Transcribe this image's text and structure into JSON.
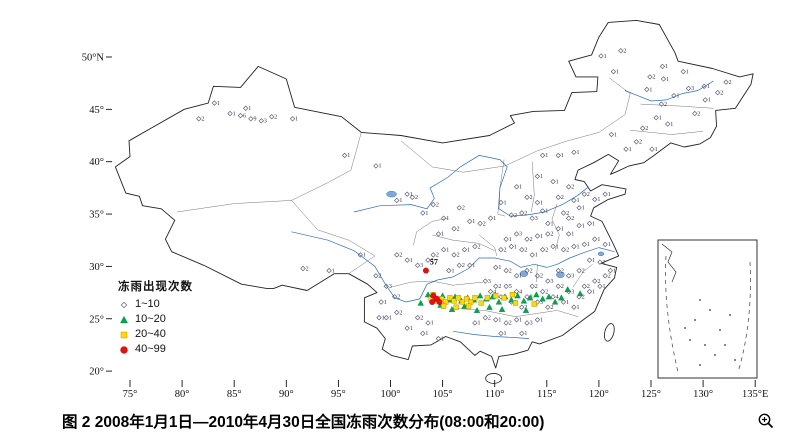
{
  "figure": {
    "caption": "图 2 2008年1月1日—2010年4月30日全国冻雨次数分布(08:00和20:00)"
  },
  "axes": {
    "lat_ticks": [
      "50°N",
      "45°",
      "40°",
      "35°",
      "30°",
      "25°",
      "20°"
    ],
    "lat_values": [
      50,
      45,
      40,
      35,
      30,
      25,
      20
    ],
    "lon_ticks": [
      "75°",
      "80°",
      "85°",
      "90°",
      "95°",
      "100°",
      "105°",
      "110°",
      "115°",
      "120°",
      "125°",
      "130°",
      "135°E"
    ],
    "lon_values": [
      75,
      80,
      85,
      90,
      95,
      100,
      105,
      110,
      115,
      120,
      125,
      130,
      135
    ]
  },
  "legend": {
    "title": "冻雨出现次数",
    "items": [
      {
        "label": "1~10",
        "marker": "diamond",
        "color": "#606080"
      },
      {
        "label": "10~20",
        "marker": "triangle",
        "color": "#00a650"
      },
      {
        "label": "20~40",
        "marker": "square",
        "color": "#ffd900"
      },
      {
        "label": "40~99",
        "marker": "circle",
        "color": "#e8100c"
      }
    ]
  },
  "chart_data": {
    "type": "scatter",
    "title": "图 2 2008年1月1日—2010年4月30日全国冻雨次数分布(08:00和20:00)",
    "xlabel": "",
    "ylabel": "",
    "x_range": [
      75,
      135
    ],
    "y_range": [
      20,
      50
    ],
    "points_format": "[lon_E, lat_N, count?]",
    "series": [
      {
        "name": "1~10",
        "marker": "diamond",
        "color": "#606080",
        "points": [
          [
            126.0,
            45.5,
            2
          ],
          [
            127.2,
            46.3,
            1
          ],
          [
            128.6,
            47.0,
            3
          ],
          [
            125.5,
            44.2,
            1
          ],
          [
            124.2,
            43.2,
            2
          ],
          [
            126.6,
            43.6,
            1
          ],
          [
            129.2,
            44.6,
            2
          ],
          [
            122.6,
            41.2,
            1
          ],
          [
            123.6,
            41.9,
            2
          ],
          [
            125.1,
            41.2,
            1
          ],
          [
            130.2,
            45.9,
            1
          ],
          [
            131.4,
            46.6,
            2
          ],
          [
            124.6,
            46.9,
            1
          ],
          [
            121.2,
            42.6,
            1
          ],
          [
            120.2,
            50.1,
            1
          ],
          [
            122.1,
            50.6,
            2
          ],
          [
            121.4,
            48.6,
            1
          ],
          [
            126.1,
            49.1,
            1
          ],
          [
            124.9,
            48.1,
            2
          ],
          [
            128.1,
            48.6,
            1
          ],
          [
            130.1,
            47.2,
            1
          ],
          [
            132.2,
            47.6,
            2
          ],
          [
            126.2,
            47.9,
            1
          ],
          [
            112.1,
            37.6,
            1
          ],
          [
            113.1,
            36.6,
            2
          ],
          [
            114.1,
            36.1,
            1
          ],
          [
            112.6,
            35.1,
            2
          ],
          [
            110.6,
            36.1,
            1
          ],
          [
            111.6,
            34.9,
            2
          ],
          [
            113.6,
            34.6,
            3
          ],
          [
            114.6,
            35.3,
            1
          ],
          [
            116.1,
            36.6,
            2
          ],
          [
            117.6,
            36.3,
            1
          ],
          [
            118.6,
            36.9,
            2
          ],
          [
            119.6,
            36.4,
            1
          ],
          [
            120.6,
            36.9,
            1
          ],
          [
            116.6,
            35.1,
            2
          ],
          [
            115.1,
            34.1,
            1
          ],
          [
            117.1,
            34.6,
            2
          ],
          [
            118.1,
            35.6,
            1
          ],
          [
            114.1,
            38.6,
            1
          ],
          [
            115.6,
            38.1,
            1
          ],
          [
            117.1,
            37.6,
            2
          ],
          [
            116.1,
            40.6,
            1
          ],
          [
            117.6,
            40.9,
            1
          ],
          [
            114.6,
            40.6,
            1
          ],
          [
            106.6,
            35.6,
            2
          ],
          [
            105.1,
            34.6,
            1
          ],
          [
            104.1,
            35.9,
            2
          ],
          [
            107.6,
            34.3,
            1
          ],
          [
            108.6,
            34.1,
            2
          ],
          [
            109.6,
            34.6,
            1
          ],
          [
            106.1,
            33.6,
            2
          ],
          [
            104.6,
            33.1,
            1
          ],
          [
            103.1,
            35.1,
            1
          ],
          [
            102.1,
            36.6,
            2
          ],
          [
            101.6,
            36.9,
            1
          ],
          [
            100.6,
            36.3,
            1
          ],
          [
            98.6,
            39.6,
            1
          ],
          [
            95.6,
            40.6,
            1
          ],
          [
            85.6,
            44.4,
            6
          ],
          [
            86.6,
            44.1,
            9
          ],
          [
            87.6,
            43.9,
            3
          ],
          [
            84.6,
            44.6,
            1
          ],
          [
            88.6,
            44.3,
            2
          ],
          [
            86.1,
            45.1,
            1
          ],
          [
            83.1,
            45.6,
            1
          ],
          [
            81.6,
            44.1,
            2
          ],
          [
            90.6,
            44.1,
            1
          ],
          [
            91.6,
            29.8,
            2
          ],
          [
            94.1,
            29.6,
            1
          ],
          [
            97.1,
            31.1,
            1
          ],
          [
            98.6,
            29.1,
            2
          ],
          [
            99.6,
            28.1,
            3
          ],
          [
            100.4,
            27.1,
            2
          ],
          [
            99.1,
            26.6,
            1
          ],
          [
            98.9,
            25.1,
            1
          ],
          [
            110.6,
            31.6,
            2
          ],
          [
            111.6,
            31.9,
            1
          ],
          [
            112.6,
            31.6,
            2
          ],
          [
            113.6,
            31.1,
            1
          ],
          [
            114.6,
            31.6,
            2
          ],
          [
            115.6,
            31.9,
            1
          ],
          [
            116.6,
            31.6,
            2
          ],
          [
            117.6,
            31.9,
            1
          ],
          [
            118.6,
            32.1,
            1
          ],
          [
            119.6,
            32.6,
            1
          ],
          [
            120.6,
            32.1,
            1
          ],
          [
            113.1,
            32.6,
            2
          ],
          [
            114.1,
            32.9,
            1
          ],
          [
            115.1,
            33.1,
            2
          ],
          [
            116.1,
            33.6,
            1
          ],
          [
            117.1,
            33.1,
            1
          ],
          [
            118.1,
            33.9,
            1
          ],
          [
            119.1,
            34.1,
            1
          ],
          [
            112.1,
            33.1,
            3
          ],
          [
            111.1,
            32.6,
            1
          ],
          [
            109.1,
            28.6,
            3
          ],
          [
            109.6,
            27.6,
            4
          ],
          [
            110.1,
            28.1,
            2
          ],
          [
            110.6,
            27.1,
            3
          ],
          [
            111.1,
            28.1,
            5
          ],
          [
            111.6,
            26.6,
            2
          ],
          [
            112.1,
            27.6,
            4
          ],
          [
            112.6,
            26.1,
            2
          ],
          [
            113.1,
            27.1,
            3
          ],
          [
            113.6,
            28.1,
            2
          ],
          [
            114.1,
            26.6,
            3
          ],
          [
            114.6,
            27.6,
            2
          ],
          [
            115.1,
            26.1,
            2
          ],
          [
            115.6,
            27.1,
            4
          ],
          [
            116.1,
            28.1,
            2
          ],
          [
            116.6,
            26.6,
            1
          ],
          [
            117.1,
            27.6,
            3
          ],
          [
            117.6,
            26.1,
            1
          ],
          [
            118.1,
            27.1,
            2
          ],
          [
            118.6,
            28.1,
            2
          ],
          [
            119.1,
            27.6,
            1
          ],
          [
            119.6,
            28.6,
            2
          ],
          [
            120.1,
            28.1,
            1
          ],
          [
            120.6,
            29.1,
            2
          ],
          [
            118.1,
            29.6,
            2
          ],
          [
            117.1,
            29.1,
            3
          ],
          [
            116.1,
            29.6,
            2
          ],
          [
            115.1,
            28.6,
            3
          ],
          [
            114.1,
            29.1,
            2
          ],
          [
            113.1,
            29.6,
            2
          ],
          [
            112.1,
            29.1,
            1
          ],
          [
            111.1,
            29.6,
            2
          ],
          [
            110.1,
            29.9,
            1
          ],
          [
            121.1,
            29.6,
            1
          ],
          [
            119.1,
            30.6,
            1
          ],
          [
            120.1,
            30.4,
            2
          ],
          [
            108.1,
            24.6,
            1
          ],
          [
            109.1,
            25.1,
            2
          ],
          [
            110.1,
            24.9,
            1
          ],
          [
            111.1,
            24.6,
            2
          ],
          [
            112.1,
            24.9,
            1
          ],
          [
            113.1,
            24.6,
            3
          ],
          [
            114.1,
            24.9,
            1
          ],
          [
            110.6,
            23.6,
            1
          ],
          [
            112.6,
            23.6,
            1
          ],
          [
            102.6,
            25.1,
            2
          ],
          [
            103.6,
            24.6,
            1
          ],
          [
            101.6,
            24.1,
            1
          ],
          [
            100.6,
            25.6,
            2
          ],
          [
            99.6,
            25.1,
            1
          ],
          [
            103.1,
            23.6,
            1
          ],
          [
            104.6,
            23.1,
            1
          ],
          [
            104.1,
            31.1,
            2
          ],
          [
            105.1,
            31.6,
            1
          ],
          [
            106.1,
            31.1,
            2
          ],
          [
            107.1,
            31.6,
            1
          ],
          [
            108.1,
            31.9,
            2
          ],
          [
            103.6,
            30.6,
            2
          ],
          [
            102.6,
            30.1,
            3
          ],
          [
            101.6,
            30.6,
            1
          ],
          [
            100.6,
            31.1,
            2
          ],
          [
            105.6,
            29.6,
            1
          ],
          [
            106.6,
            30.1,
            2
          ],
          [
            107.6,
            30.1,
            1
          ]
        ]
      },
      {
        "name": "10~20",
        "marker": "triangle",
        "color": "#00a650",
        "points": [
          [
            104.3,
            26.9
          ],
          [
            105.0,
            27.2
          ],
          [
            105.6,
            26.8
          ],
          [
            106.2,
            27.1
          ],
          [
            106.8,
            26.7
          ],
          [
            107.4,
            27.0
          ],
          [
            108.0,
            26.8
          ],
          [
            108.6,
            27.2
          ],
          [
            109.2,
            26.9
          ],
          [
            109.8,
            27.1
          ],
          [
            110.4,
            26.6
          ],
          [
            111.0,
            27.1
          ],
          [
            111.6,
            26.8
          ],
          [
            112.2,
            27.2
          ],
          [
            112.8,
            26.7
          ],
          [
            113.4,
            27.0
          ],
          [
            114.0,
            27.3
          ],
          [
            114.6,
            26.9
          ],
          [
            115.2,
            27.1
          ],
          [
            115.8,
            26.6
          ],
          [
            116.4,
            27.0
          ],
          [
            104.8,
            26.3
          ],
          [
            105.9,
            25.9
          ],
          [
            107.1,
            26.2
          ],
          [
            108.3,
            25.8
          ],
          [
            109.5,
            26.1
          ],
          [
            110.7,
            25.9
          ],
          [
            113.0,
            25.8
          ],
          [
            102.9,
            26.5
          ],
          [
            103.6,
            27.3
          ],
          [
            117.0,
            27.8
          ],
          [
            118.2,
            27.4
          ]
        ]
      },
      {
        "name": "20~40",
        "marker": "square",
        "color": "#ffd900",
        "points": [
          [
            104.5,
            26.7
          ],
          [
            104.9,
            26.9
          ],
          [
            105.3,
            26.6
          ],
          [
            105.7,
            27.0
          ],
          [
            106.1,
            26.7
          ],
          [
            106.5,
            27.0
          ],
          [
            106.9,
            26.6
          ],
          [
            107.3,
            26.9
          ],
          [
            107.7,
            26.6
          ],
          [
            108.1,
            27.0
          ],
          [
            108.7,
            26.5
          ],
          [
            109.3,
            27.0
          ],
          [
            110.1,
            27.2
          ],
          [
            110.9,
            27.0
          ],
          [
            112.0,
            26.5
          ],
          [
            105.1,
            26.2
          ],
          [
            106.3,
            26.1
          ],
          [
            107.5,
            26.2
          ],
          [
            103.9,
            26.9
          ],
          [
            104.1,
            27.3
          ],
          [
            111.7,
            27.3
          ],
          [
            113.8,
            26.4
          ]
        ]
      },
      {
        "name": "40~99",
        "marker": "circle",
        "color": "#e8100c",
        "points": [
          [
            103.4,
            29.6
          ],
          [
            104.1,
            27.2
          ],
          [
            104.45,
            26.9
          ],
          [
            104.0,
            26.6
          ],
          [
            104.7,
            26.6
          ]
        ]
      }
    ],
    "annotations": [
      {
        "text": "57",
        "lon": 103.4,
        "lat": 29.6
      }
    ]
  }
}
